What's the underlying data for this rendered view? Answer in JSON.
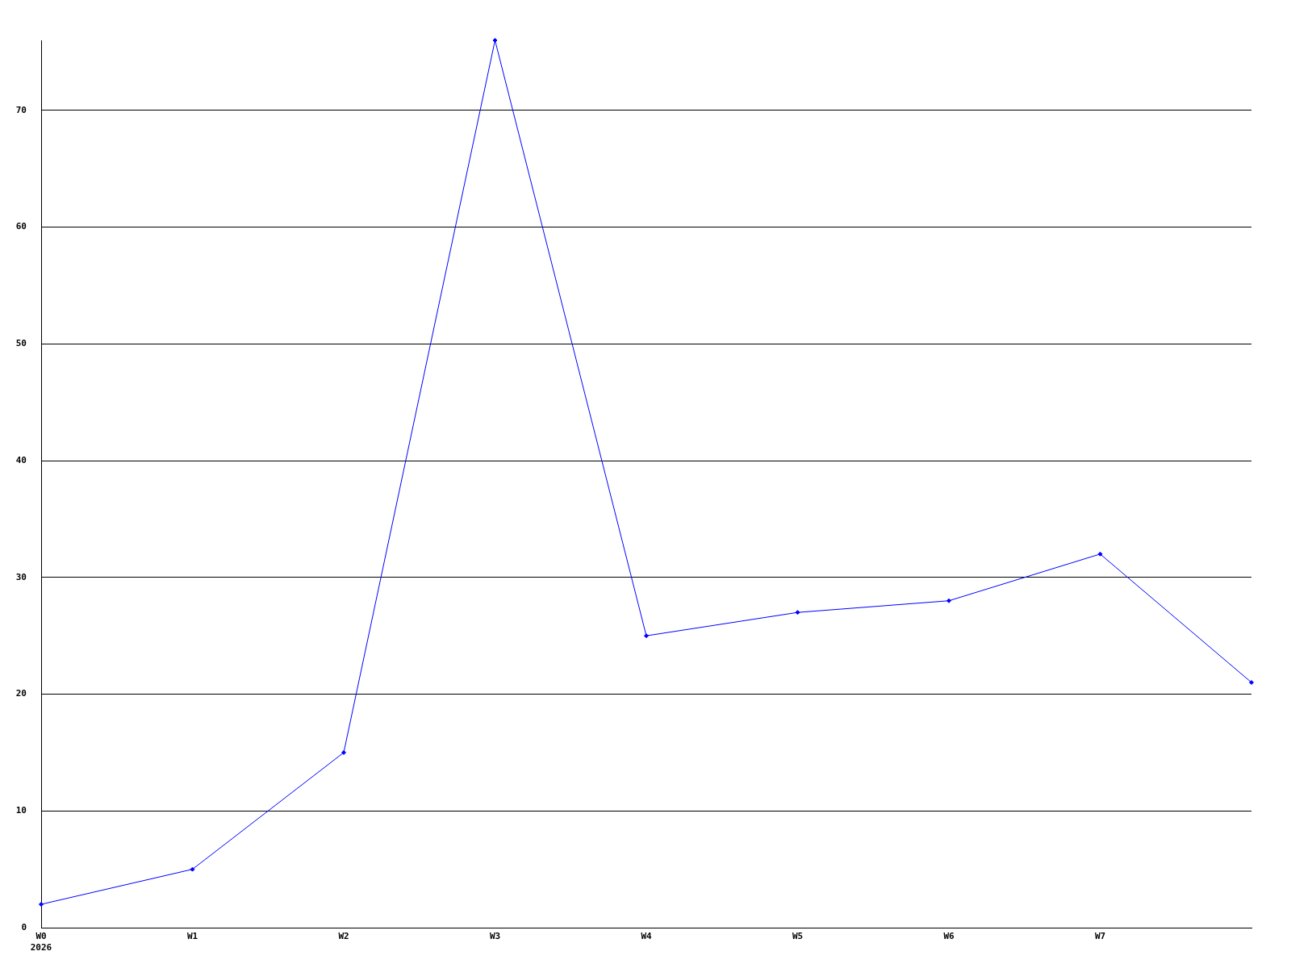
{
  "chart_data": {
    "type": "line",
    "categories": [
      "W0\n2026",
      "W1",
      "W2",
      "W3",
      "W4",
      "W5",
      "W6",
      "W7",
      null
    ],
    "series": [
      {
        "color": "#0000ff",
        "values": [
          2,
          5,
          15,
          76,
          25,
          27,
          28,
          32,
          21
        ]
      }
    ],
    "ylim": [
      0,
      76
    ],
    "yticks": [
      0,
      10,
      20,
      30,
      40,
      50,
      60,
      70
    ],
    "grid": "y",
    "marker": "diamond",
    "line_style": "solid"
  }
}
